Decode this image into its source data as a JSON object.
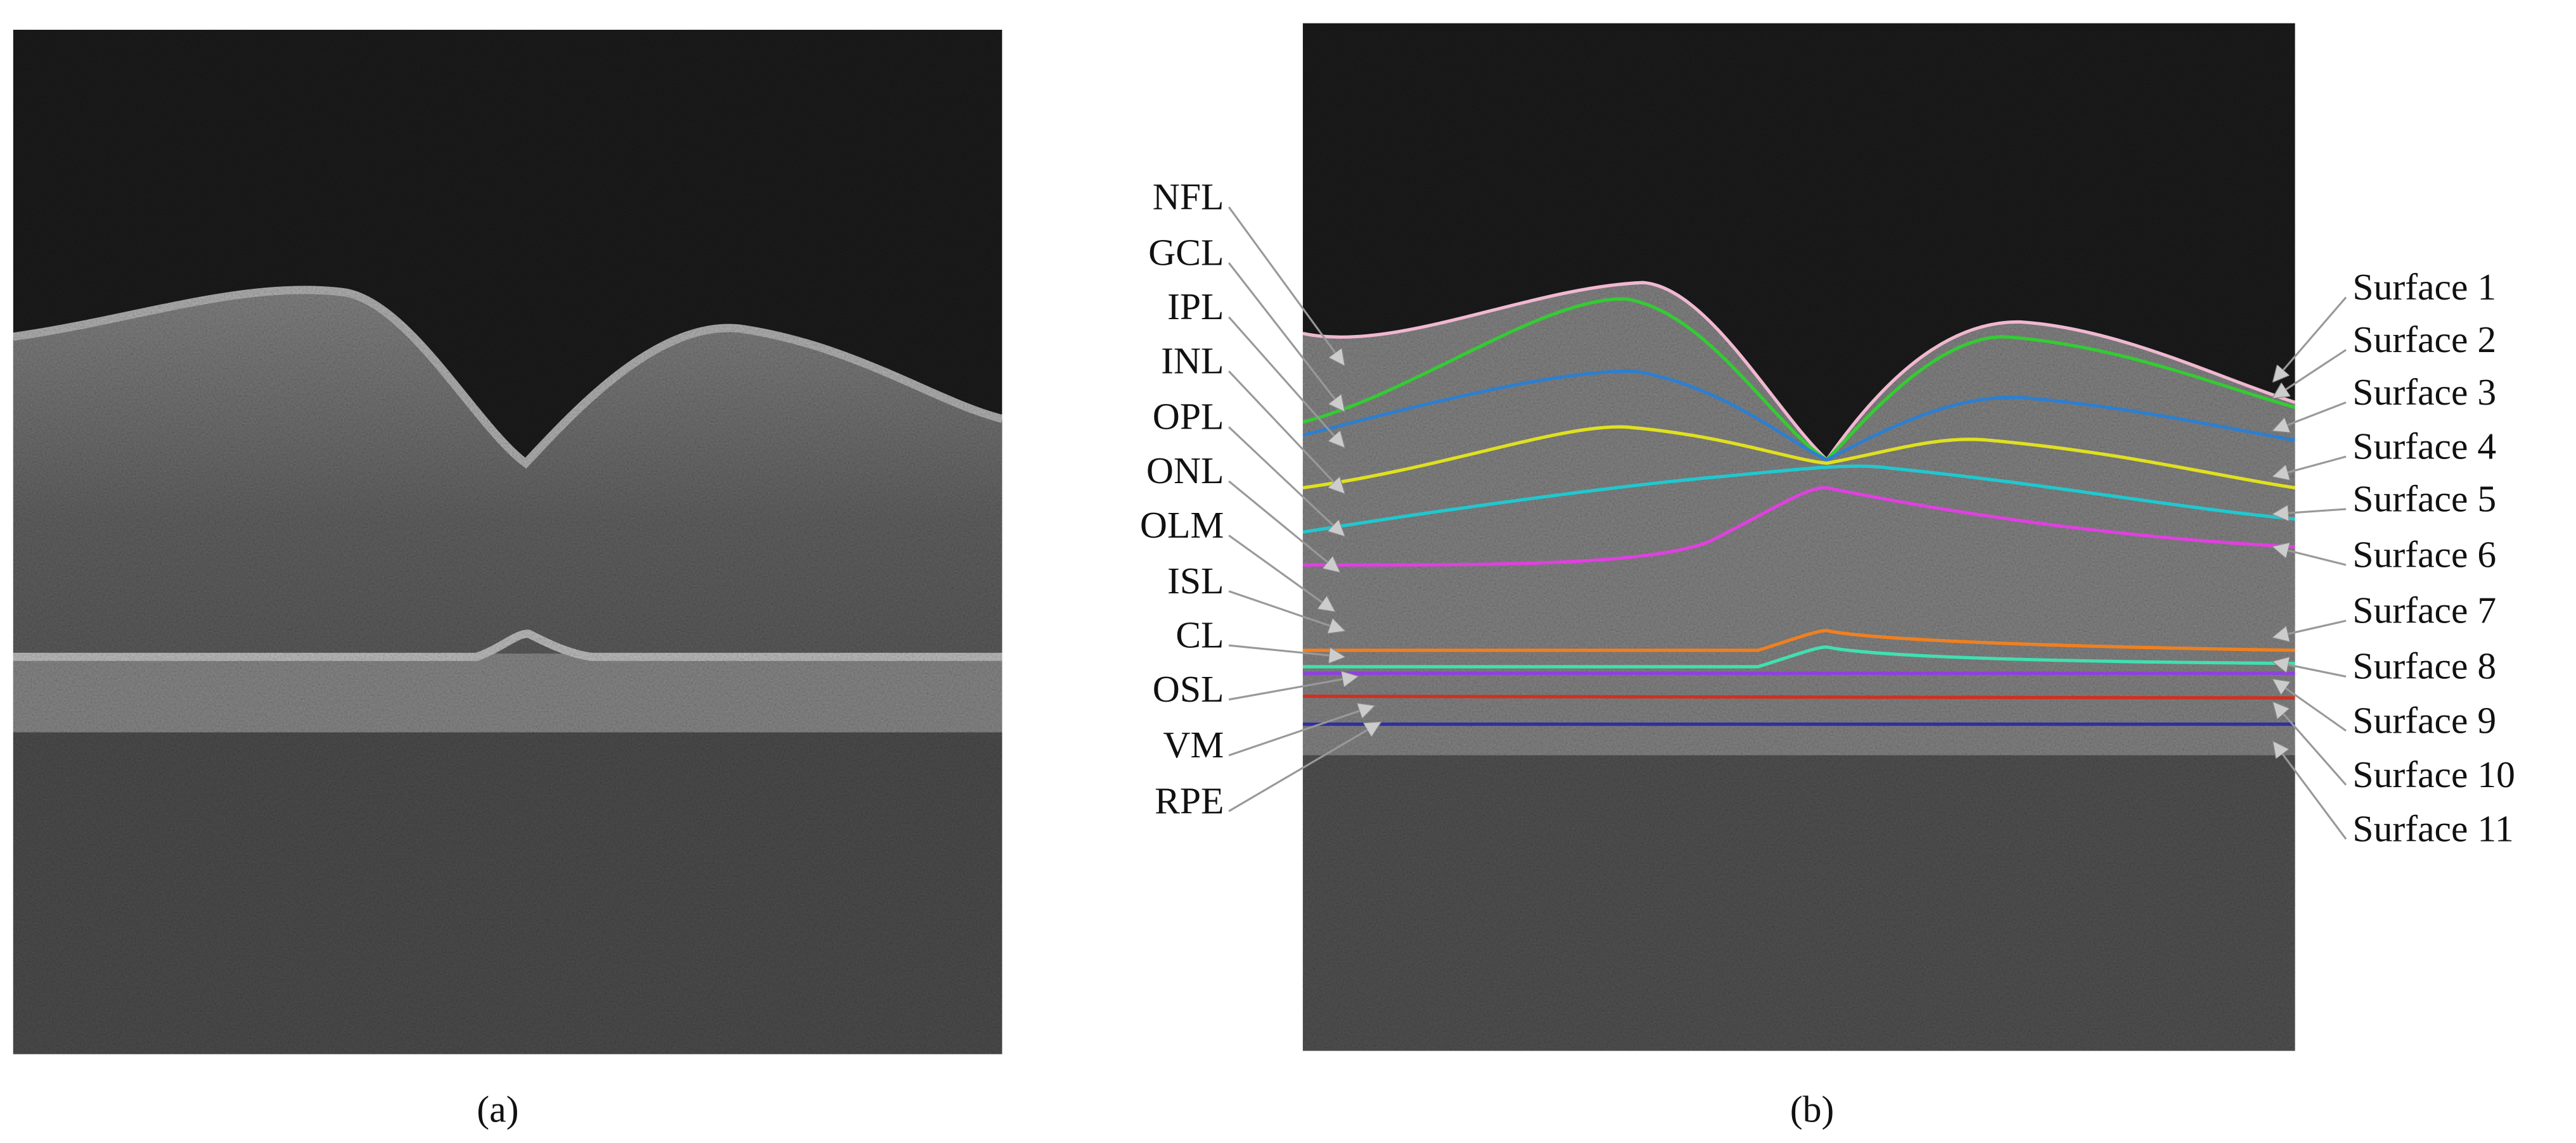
{
  "figure": {
    "panel_a": {
      "caption": "(a)"
    },
    "panel_b": {
      "caption": "(b)",
      "layer_labels": [
        "NFL",
        "GCL",
        "IPL",
        "INL",
        "OPL",
        "ONL",
        "OLM",
        "ISL",
        "CL",
        "OSL",
        "VM",
        "RPE"
      ],
      "surface_labels": [
        "Surface 1",
        "Surface 2",
        "Surface 3",
        "Surface 4",
        "Surface 5",
        "Surface 6",
        "Surface 7",
        "Surface 8",
        "Surface 9",
        "Surface 10",
        "Surface 11"
      ]
    }
  }
}
